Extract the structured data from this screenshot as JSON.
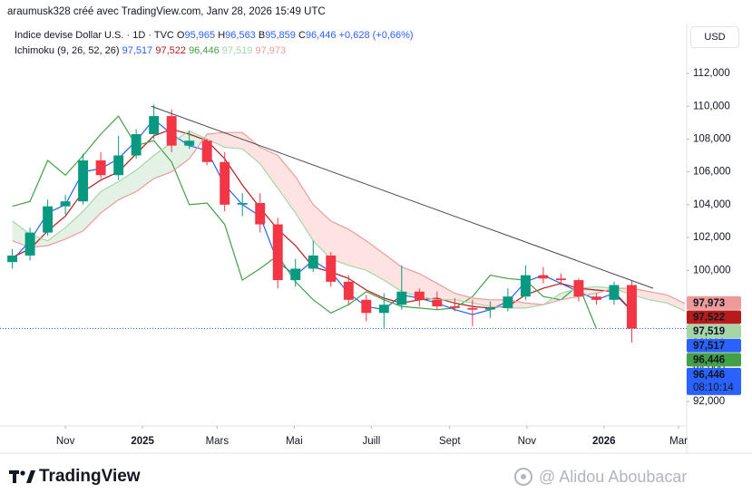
{
  "header": {
    "attribution": "araumusk328 créé avec TradingView.com, Janv 28, 2026 15:49 UTC",
    "symbol": "Indice devise Dollar U.S. · 1D · TVC",
    "ohlc": [
      {
        "key": "O",
        "value": "95,965"
      },
      {
        "key": "H",
        "value": "96,563"
      },
      {
        "key": "B",
        "value": "95,859"
      },
      {
        "key": "C",
        "value": "96,446"
      }
    ],
    "change": "+0,628 (+0,66%)",
    "currency": "USD",
    "countdown": "08:10:14"
  },
  "chart_data": {
    "type": "candlestick",
    "x": [
      "2024-09-20",
      "2024-10-04",
      "2024-10-18",
      "2024-11-01",
      "2024-11-15",
      "2024-11-29",
      "2024-12-13",
      "2024-12-27",
      "2025-01-10",
      "2025-01-24",
      "2025-02-07",
      "2025-02-21",
      "2025-03-07",
      "2025-03-21",
      "2025-04-04",
      "2025-04-18",
      "2025-05-02",
      "2025-05-16",
      "2025-05-30",
      "2025-06-13",
      "2025-06-27",
      "2025-07-11",
      "2025-07-25",
      "2025-08-08",
      "2025-08-22",
      "2025-09-05",
      "2025-09-19",
      "2025-10-03",
      "2025-10-17",
      "2025-10-31",
      "2025-11-14",
      "2025-11-28",
      "2025-12-12",
      "2025-12-26",
      "2026-01-09",
      "2026-01-23",
      "2026-02-06",
      "2026-02-20",
      "2026-03-06"
    ],
    "open": [
      100.5,
      100.9,
      102.3,
      103.9,
      104.2,
      106.7,
      105.8,
      107.0,
      108.3,
      109.4,
      107.6,
      107.9,
      106.6,
      104.0,
      104.1,
      102.8,
      99.4,
      100.1,
      100.9,
      99.3,
      98.2,
      97.4,
      97.9,
      98.7,
      98.2,
      97.8,
      97.7,
      97.6,
      97.7,
      98.4,
      99.7,
      99.5,
      99.4,
      98.4,
      98.2,
      99.1,
      null,
      null,
      null
    ],
    "high": [
      101.3,
      102.6,
      104.3,
      104.6,
      107.1,
      107.2,
      108.2,
      108.6,
      110.1,
      109.8,
      108.5,
      108.0,
      107.2,
      104.7,
      104.7,
      103.2,
      100.7,
      101.8,
      101.1,
      99.7,
      98.5,
      98.6,
      100.3,
      98.9,
      98.7,
      98.3,
      98.2,
      98.1,
      98.9,
      100.3,
      100.2,
      99.8,
      99.5,
      98.6,
      99.3,
      99.4,
      null,
      null,
      null
    ],
    "low": [
      100.1,
      100.6,
      102.1,
      103.4,
      104.0,
      105.6,
      105.5,
      106.8,
      108.0,
      107.2,
      107.4,
      106.4,
      103.6,
      103.3,
      102.3,
      98.9,
      99.0,
      99.9,
      99.0,
      97.9,
      96.9,
      96.5,
      97.6,
      97.8,
      97.6,
      97.5,
      96.6,
      97.1,
      97.5,
      98.2,
      99.2,
      99.1,
      98.1,
      97.9,
      97.9,
      95.6,
      null,
      null,
      null
    ],
    "close": [
      100.9,
      102.3,
      103.9,
      104.2,
      106.7,
      105.8,
      107.0,
      108.3,
      109.4,
      107.6,
      107.9,
      106.6,
      104.0,
      104.1,
      102.8,
      99.4,
      100.1,
      100.9,
      99.3,
      98.2,
      97.4,
      97.9,
      98.7,
      98.2,
      97.8,
      97.7,
      97.6,
      97.7,
      98.4,
      99.7,
      99.5,
      99.4,
      98.4,
      98.2,
      99.1,
      96.446,
      null,
      null,
      null
    ],
    "up_color": "#089981",
    "down_color": "#f23645",
    "price_color": "#2962ff",
    "indicator": {
      "title": "Ichimoku (9, 26, 52, 26)",
      "series": [
        {
          "color": "#2962ff",
          "legend_value": "97,517",
          "values": [
            100.6,
            101.8,
            103.5,
            104.0,
            106.0,
            106.2,
            106.8,
            107.9,
            109.2,
            108.3,
            107.6,
            107.3,
            105.2,
            104.0,
            103.3,
            100.5,
            99.7,
            100.6,
            99.9,
            98.6,
            97.8,
            97.6,
            98.5,
            98.3,
            98.0,
            97.6,
            97.3,
            97.6,
            98.1,
            99.3,
            99.7,
            99.2,
            98.7,
            98.2,
            98.6,
            97.517,
            null,
            null,
            null
          ]
        },
        {
          "color": "#b71c1c",
          "legend_value": "97,522",
          "values": [
            100.8,
            101.3,
            102.4,
            103.3,
            104.8,
            105.5,
            106.0,
            107.1,
            108.2,
            108.6,
            108.3,
            107.9,
            106.8,
            105.2,
            103.8,
            102.5,
            101.5,
            100.2,
            99.9,
            99.5,
            98.8,
            98.3,
            98.0,
            98.2,
            98.3,
            98.0,
            97.8,
            97.7,
            97.8,
            98.5,
            98.9,
            99.2,
            98.9,
            98.8,
            98.7,
            97.522,
            null,
            null,
            null
          ]
        },
        {
          "color": "#43a047",
          "legend_value": "96,446",
          "values": [
            103.9,
            104.2,
            106.7,
            105.8,
            107.0,
            108.3,
            109.4,
            107.6,
            107.9,
            106.6,
            104.0,
            104.1,
            102.8,
            99.4,
            100.1,
            100.9,
            99.3,
            98.2,
            97.4,
            97.9,
            98.7,
            98.2,
            97.8,
            97.7,
            97.6,
            97.7,
            98.4,
            99.7,
            99.5,
            99.4,
            98.4,
            98.2,
            99.1,
            96.446,
            null,
            null,
            null,
            null,
            null
          ]
        },
        {
          "color": "#a5d6a7",
          "legend_value": "97,519",
          "values": [
            103.0,
            102.2,
            101.8,
            102.6,
            103.6,
            104.8,
            105.4,
            106.1,
            107.0,
            107.8,
            108.5,
            108.0,
            107.5,
            107.4,
            106.5,
            105.0,
            103.5,
            101.8,
            100.7,
            100.3,
            100.0,
            99.4,
            98.7,
            98.4,
            98.2,
            98.2,
            98.0,
            97.8,
            97.7,
            97.7,
            97.9,
            98.6,
            98.9,
            99.0,
            98.9,
            98.5,
            98.2,
            98.0,
            97.519
          ]
        },
        {
          "color": "#ef9a9a",
          "legend_value": "97,973",
          "values": [
            101.8,
            101.4,
            101.5,
            101.9,
            102.4,
            103.5,
            104.3,
            104.8,
            105.6,
            106.0,
            106.8,
            108.3,
            108.4,
            108.4,
            107.5,
            107.0,
            105.7,
            104.0,
            103.0,
            102.5,
            101.8,
            101.0,
            100.2,
            99.8,
            99.2,
            98.6,
            98.3,
            98.2,
            98.2,
            98.0,
            97.9,
            98.2,
            98.4,
            98.6,
            98.9,
            98.9,
            98.7,
            98.5,
            97.973
          ]
        }
      ],
      "cloud_between": [
        3,
        4
      ],
      "cloud_up_color": "rgba(67,160,71,0.14)",
      "cloud_down_color": "rgba(244,67,54,0.14)",
      "tag_text_colors": [
        "#ffffff",
        "#ffffff",
        "#131722",
        "#131722",
        "#ffffff"
      ]
    },
    "trendline": {
      "x": [
        "2025-01-08",
        "2026-02-09"
      ],
      "y": [
        110.0,
        98.9
      ],
      "color": "#434651"
    },
    "xlim": [
      "2024-09-16",
      "2026-03-06"
    ],
    "xticks": [
      {
        "value": "2024-11-01",
        "label": "Nov"
      },
      {
        "value": "2025-01-01",
        "label": "2025"
      },
      {
        "value": "2025-03-01",
        "label": "Mars"
      },
      {
        "value": "2025-05-01",
        "label": "Mai"
      },
      {
        "value": "2025-07-01",
        "label": "Juill"
      },
      {
        "value": "2025-09-01",
        "label": "Sept"
      },
      {
        "value": "2025-11-01",
        "label": "Nov"
      },
      {
        "value": "2026-01-01",
        "label": "2026"
      },
      {
        "value": "2026-03-01",
        "label": "Mar"
      }
    ],
    "ylim": [
      90.51,
      114.82
    ],
    "yticks": [
      {
        "value": 92,
        "label": "92,000"
      },
      {
        "value": 94,
        "label": "94,000"
      },
      {
        "value": 96,
        "label": "96,000"
      },
      {
        "value": 98,
        "label": "98,000"
      },
      {
        "value": 100,
        "label": "100,000"
      },
      {
        "value": 102,
        "label": "102,000"
      },
      {
        "value": 104,
        "label": "104,000"
      },
      {
        "value": 106,
        "label": "106,000"
      },
      {
        "value": 108,
        "label": "108,000"
      },
      {
        "value": 110,
        "label": "110,000"
      },
      {
        "value": 112,
        "label": "112,000"
      }
    ],
    "grid": false
  },
  "footer": {
    "logo": "TradingView",
    "watermark": "@ Alidou Aboubacar"
  }
}
